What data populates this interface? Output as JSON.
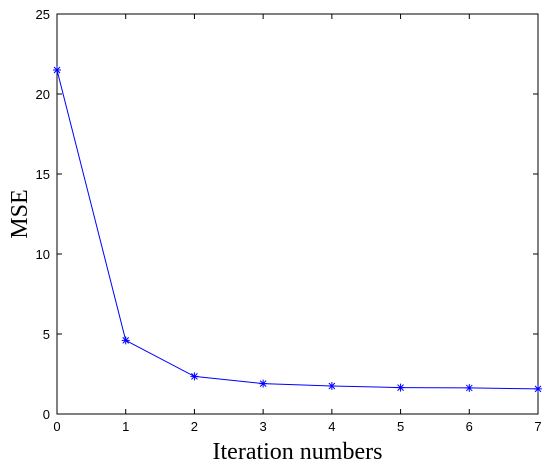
{
  "chart_data": {
    "type": "line",
    "title": "",
    "xlabel": "Iteration numbers",
    "ylabel": "MSE",
    "xlim": [
      0,
      7
    ],
    "ylim": [
      0,
      25
    ],
    "xticks": [
      0,
      1,
      2,
      3,
      4,
      5,
      6,
      7
    ],
    "yticks": [
      0,
      5,
      10,
      15,
      20,
      25
    ],
    "grid": false,
    "legend": "none",
    "series": [
      {
        "color": "#0000ff",
        "marker": "asterisk",
        "x": [
          0,
          1,
          2,
          3,
          4,
          5,
          6,
          7
        ],
        "y": [
          21.5,
          4.6,
          2.35,
          1.9,
          1.75,
          1.65,
          1.63,
          1.57
        ]
      }
    ]
  }
}
